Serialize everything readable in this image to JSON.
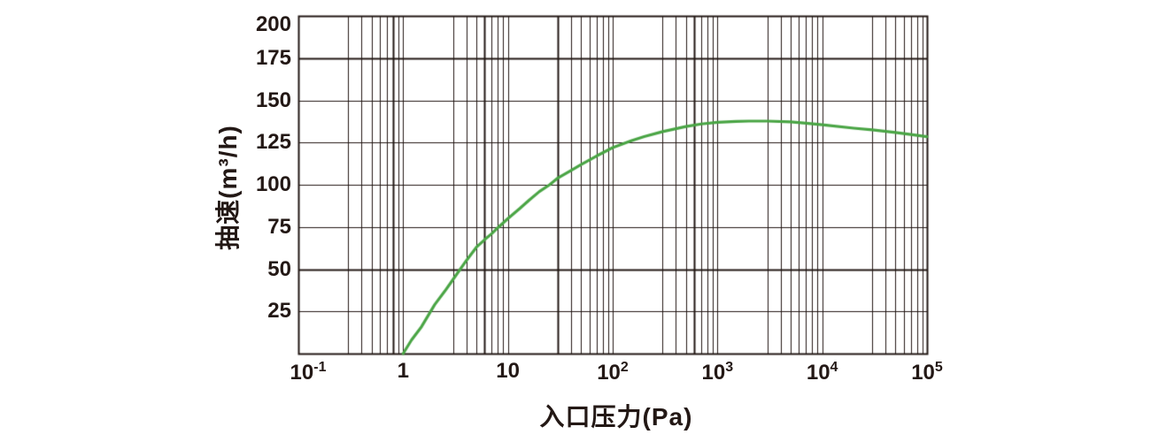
{
  "colors": {
    "ink": "#231815",
    "curve_green": "#4aa545",
    "background": "#ffffff"
  },
  "chart_data": {
    "type": "line",
    "title": "",
    "xlabel": "入口压力(Pa)",
    "ylabel": "抽速(m³/h)",
    "x_scale": "log",
    "x_range": [
      0.1,
      100000
    ],
    "y_range": [
      0,
      200
    ],
    "grid": true,
    "legend": false,
    "y_ticks": [
      25,
      50,
      75,
      100,
      125,
      150,
      175,
      200
    ],
    "x_ticks": [
      {
        "value": 0.1,
        "base": "10",
        "exp": "-1"
      },
      {
        "value": 1,
        "base": "1",
        "exp": ""
      },
      {
        "value": 10,
        "base": "10",
        "exp": ""
      },
      {
        "value": 100,
        "base": "10",
        "exp": "2"
      },
      {
        "value": 1000,
        "base": "10",
        "exp": "3"
      },
      {
        "value": 10000,
        "base": "10",
        "exp": "4"
      },
      {
        "value": 100000,
        "base": "10",
        "exp": "5"
      }
    ],
    "minor_multiples": [
      3,
      4,
      5,
      6,
      7,
      8,
      9
    ],
    "emphasis_x": [
      0.8,
      6,
      30,
      600
    ],
    "emphasis_y": [
      50,
      175
    ],
    "series": [
      {
        "name": "pumping-speed",
        "color": "#4aa545",
        "points": [
          [
            1,
            0
          ],
          [
            1.2,
            8
          ],
          [
            1.5,
            16
          ],
          [
            2,
            29
          ],
          [
            2.5,
            37
          ],
          [
            3,
            44
          ],
          [
            4,
            55
          ],
          [
            5,
            63
          ],
          [
            6,
            67.5
          ],
          [
            7,
            71
          ],
          [
            8,
            74.5
          ],
          [
            10,
            80
          ],
          [
            13,
            86
          ],
          [
            16,
            91
          ],
          [
            20,
            96
          ],
          [
            25,
            100
          ],
          [
            30,
            104
          ],
          [
            40,
            108.5
          ],
          [
            50,
            112
          ],
          [
            70,
            117
          ],
          [
            100,
            122
          ],
          [
            150,
            126
          ],
          [
            200,
            128.5
          ],
          [
            300,
            131.5
          ],
          [
            500,
            134.5
          ],
          [
            700,
            136
          ],
          [
            1000,
            137
          ],
          [
            1500,
            137.5
          ],
          [
            2000,
            137.7
          ],
          [
            3000,
            137.7
          ],
          [
            5000,
            137.2
          ],
          [
            7000,
            136.5
          ],
          [
            10000,
            135.5
          ],
          [
            20000,
            133.5
          ],
          [
            30000,
            132.5
          ],
          [
            50000,
            131
          ],
          [
            70000,
            129.8
          ],
          [
            100000,
            128.5
          ]
        ]
      }
    ]
  }
}
